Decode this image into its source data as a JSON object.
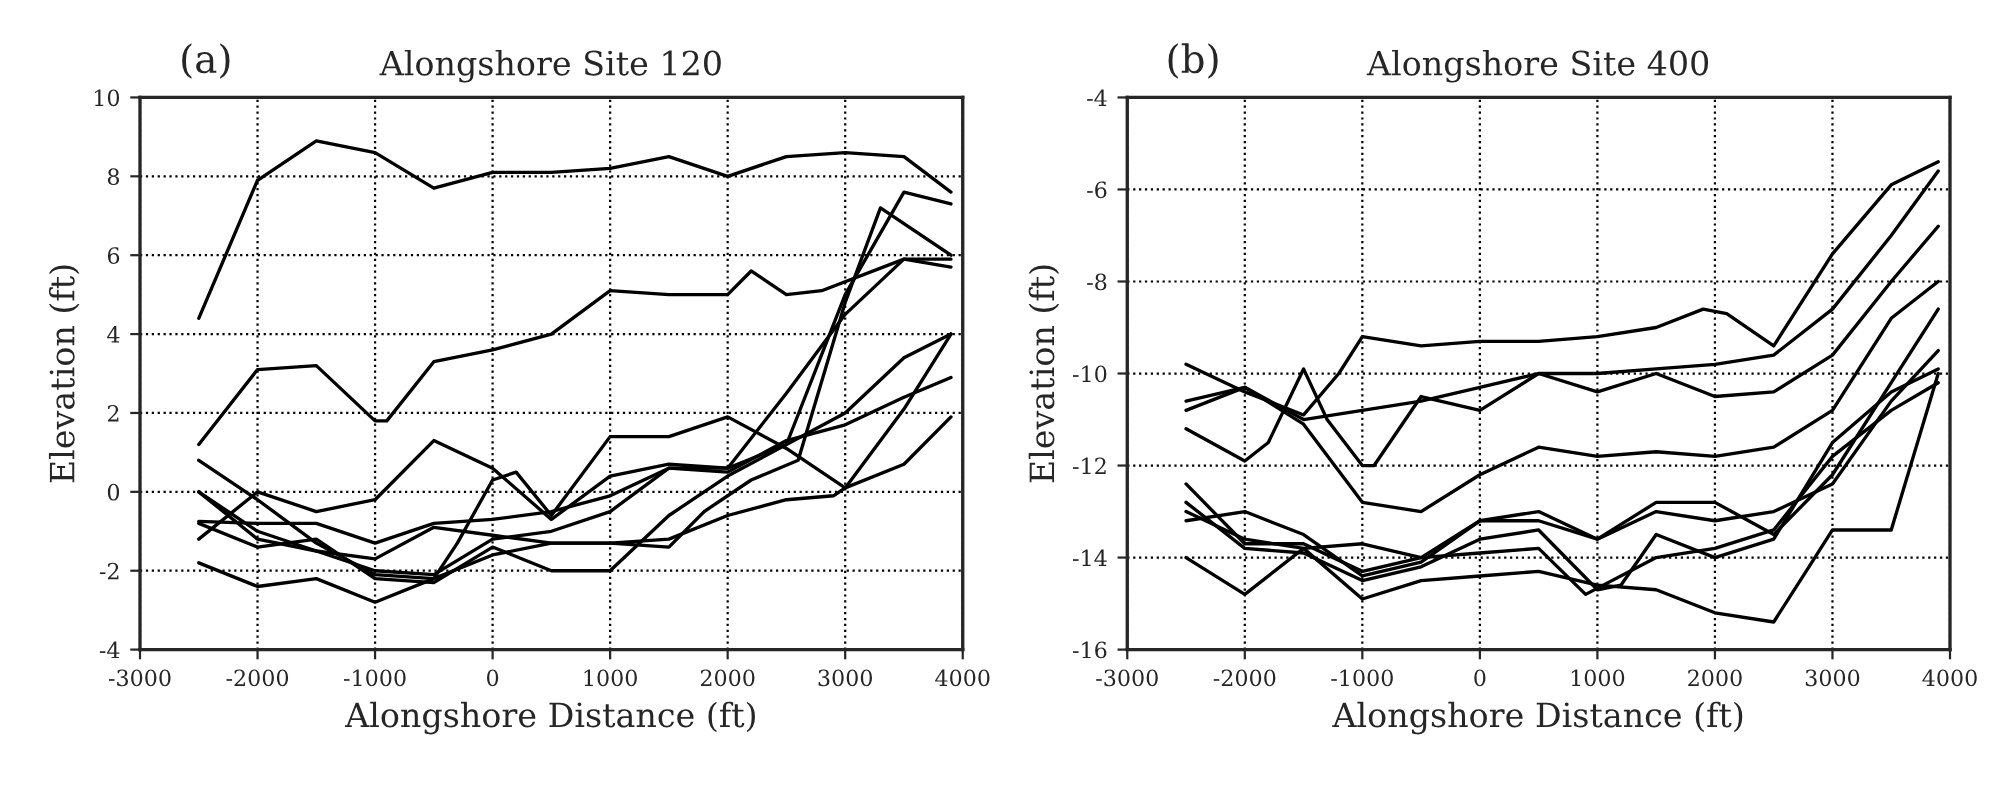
{
  "chart_data": [
    {
      "type": "line",
      "title": "Alongshore Site 120",
      "annotations": [
        "(a)"
      ],
      "xlabel": "Alongshore Distance (ft)",
      "ylabel": "Elevation (ft)",
      "xlim": [
        -3000,
        4000
      ],
      "xticks": [
        -3000,
        -2000,
        -1000,
        0,
        1000,
        2000,
        3000,
        4000
      ],
      "ylim": [
        -4,
        10
      ],
      "yticks": [
        -4,
        -2,
        0,
        2,
        4,
        6,
        8,
        10
      ],
      "grid": true,
      "line_style": "solid",
      "series": [
        {
          "color": "#000000",
          "x": [
            -2500,
            -2000,
            -1500,
            -1000,
            -500,
            0,
            500,
            1000,
            1500,
            2000,
            2500,
            3000,
            3500,
            3900
          ],
          "values": [
            4.4,
            7.9,
            8.9,
            8.6,
            7.7,
            8.1,
            8.1,
            8.2,
            8.5,
            8.0,
            8.5,
            8.6,
            8.5,
            7.6
          ]
        },
        {
          "color": "#000000",
          "x": [
            -2500,
            -2000,
            -1500,
            -1000,
            -900,
            -500,
            0,
            500,
            1000,
            1500,
            2000,
            2200,
            2500,
            2800,
            3500,
            3900
          ],
          "values": [
            1.2,
            3.1,
            3.2,
            1.8,
            1.8,
            3.3,
            3.6,
            4.0,
            5.1,
            5.0,
            5.0,
            5.6,
            5.0,
            5.1,
            5.9,
            5.7
          ]
        },
        {
          "color": "#000000",
          "x": [
            -2500,
            -2000,
            -1500,
            -1000,
            -500,
            -300,
            0,
            200,
            500,
            1000,
            1500,
            2000,
            2500,
            3000,
            3500,
            3900
          ],
          "values": [
            0.8,
            -0.2,
            -1.3,
            -2.1,
            -2.2,
            -1.3,
            0.3,
            0.5,
            -0.6,
            1.4,
            1.4,
            1.9,
            1.1,
            0.1,
            2.1,
            4.0
          ]
        },
        {
          "color": "#000000",
          "x": [
            -2500,
            -2000,
            -1500,
            -1000,
            -500,
            0,
            500,
            1000,
            1500,
            2000,
            2500,
            3000,
            3500,
            3900
          ],
          "values": [
            0.0,
            -1.2,
            -1.5,
            -2.0,
            -2.1,
            -1.2,
            -1.0,
            -0.5,
            0.6,
            0.6,
            2.5,
            4.5,
            5.9,
            5.9
          ]
        },
        {
          "color": "#000000",
          "x": [
            -2500,
            -2000,
            -1500,
            -1000,
            -500,
            0,
            500,
            1000,
            1500,
            2000,
            2500,
            3000,
            3500,
            3900
          ],
          "values": [
            -1.2,
            0.0,
            -0.5,
            -0.2,
            1.3,
            0.6,
            -0.7,
            0.4,
            0.7,
            0.6,
            1.2,
            2.0,
            3.4,
            4.0
          ]
        },
        {
          "color": "#000000",
          "x": [
            -2500,
            -2000,
            -1500,
            -1000,
            -500,
            0,
            500,
            1000,
            1500,
            2000,
            2500,
            3000,
            3500,
            3900
          ],
          "values": [
            -0.75,
            -0.8,
            -0.8,
            -1.3,
            -0.8,
            -0.7,
            -0.5,
            -0.1,
            0.6,
            0.5,
            1.3,
            1.7,
            2.4,
            2.9
          ]
        },
        {
          "color": "#000000",
          "x": [
            -2500,
            -2000,
            -1500,
            -1000,
            -500,
            0,
            500,
            1000,
            1500,
            2000,
            2500,
            2900,
            3000,
            3500,
            3900
          ],
          "values": [
            -1.8,
            -2.4,
            -2.2,
            -2.8,
            -2.2,
            -1.6,
            -1.3,
            -1.3,
            -1.2,
            -0.6,
            -0.2,
            -0.1,
            0.1,
            0.7,
            1.9
          ]
        },
        {
          "color": "#000000",
          "x": [
            -2500,
            -2000,
            -1500,
            -1000,
            -500,
            0,
            500,
            1000,
            1500,
            1800,
            2200,
            2600,
            3000,
            3300,
            3900
          ],
          "values": [
            0.0,
            -1.0,
            -1.5,
            -1.7,
            -0.9,
            -1.1,
            -1.3,
            -1.3,
            -1.4,
            -0.5,
            0.3,
            0.8,
            4.8,
            7.2,
            6.0
          ]
        },
        {
          "color": "#000000",
          "x": [
            -2500,
            -2000,
            -1500,
            -1000,
            -500,
            0,
            500,
            1000,
            1500,
            2000,
            2500,
            3000,
            3500,
            3900
          ],
          "values": [
            -0.8,
            -1.4,
            -1.2,
            -2.2,
            -2.3,
            -1.4,
            -2.0,
            -2.0,
            -0.6,
            0.4,
            1.2,
            5.0,
            7.6,
            7.3
          ]
        }
      ]
    },
    {
      "type": "line",
      "title": "Alongshore Site 400",
      "annotations": [
        "(b)"
      ],
      "xlabel": "Alongshore Distance (ft)",
      "ylabel": "Elevation (ft)",
      "xlim": [
        -3000,
        4000
      ],
      "xticks": [
        -3000,
        -2000,
        -1000,
        0,
        1000,
        2000,
        3000,
        4000
      ],
      "ylim": [
        -16,
        -4
      ],
      "yticks": [
        -16,
        -14,
        -12,
        -10,
        -8,
        -6,
        -4
      ],
      "grid": true,
      "line_style": "solid",
      "series": [
        {
          "color": "#000000",
          "x": [
            -2500,
            -2000,
            -1500,
            -1200,
            -1000,
            -500,
            0,
            500,
            1000,
            1500,
            1900,
            2100,
            2500,
            3000,
            3500,
            3900
          ],
          "values": [
            -9.8,
            -10.4,
            -10.9,
            -10.0,
            -9.2,
            -9.4,
            -9.3,
            -9.3,
            -9.2,
            -9.0,
            -8.6,
            -8.7,
            -9.4,
            -7.4,
            -5.9,
            -5.4
          ]
        },
        {
          "color": "#000000",
          "x": [
            -2500,
            -2000,
            -1500,
            -1000,
            -500,
            0,
            500,
            1000,
            1500,
            2000,
            2500,
            3000,
            3500,
            3900
          ],
          "values": [
            -10.6,
            -10.3,
            -11.0,
            -10.8,
            -10.6,
            -10.3,
            -10.0,
            -10.0,
            -9.9,
            -9.8,
            -9.6,
            -8.6,
            -7.0,
            -5.6
          ]
        },
        {
          "color": "#000000",
          "x": [
            -2500,
            -2000,
            -1800,
            -1500,
            -1300,
            -1000,
            -900,
            -500,
            0,
            500,
            1000,
            1500,
            2000,
            2500,
            3000,
            3500,
            3900
          ],
          "values": [
            -11.2,
            -11.9,
            -11.5,
            -9.9,
            -11.0,
            -12.0,
            -12.0,
            -10.5,
            -10.8,
            -10.0,
            -10.4,
            -10.0,
            -10.5,
            -10.4,
            -9.6,
            -8.0,
            -6.8
          ]
        },
        {
          "color": "#000000",
          "x": [
            -2500,
            -2000,
            -1500,
            -1000,
            -500,
            0,
            500,
            1000,
            1500,
            2000,
            2500,
            3000,
            3500,
            3900
          ],
          "values": [
            -10.8,
            -10.3,
            -11.1,
            -12.8,
            -13.0,
            -12.2,
            -11.6,
            -11.8,
            -11.7,
            -11.8,
            -11.6,
            -10.8,
            -8.8,
            -8.0
          ]
        },
        {
          "color": "#000000",
          "x": [
            -2500,
            -2000,
            -1500,
            -1000,
            -500,
            0,
            500,
            1000,
            1500,
            2000,
            2500,
            3000,
            3500,
            3900
          ],
          "values": [
            -12.4,
            -13.7,
            -13.7,
            -14.3,
            -14.0,
            -13.2,
            -13.0,
            -13.6,
            -12.8,
            -12.8,
            -13.5,
            -12.2,
            -10.2,
            -8.6
          ]
        },
        {
          "color": "#000000",
          "x": [
            -2500,
            -2000,
            -1500,
            -1000,
            -500,
            0,
            500,
            1000,
            1500,
            2000,
            2500,
            3000,
            3500,
            3900
          ],
          "values": [
            -13.2,
            -13.0,
            -13.5,
            -14.4,
            -14.1,
            -13.2,
            -13.2,
            -13.6,
            -13.0,
            -13.2,
            -13.0,
            -12.4,
            -10.6,
            -9.5
          ]
        },
        {
          "color": "#000000",
          "x": [
            -2500,
            -2000,
            -1500,
            -1000,
            -500,
            0,
            500,
            1000,
            1200,
            1500,
            2000,
            2500,
            3000,
            3500,
            3900
          ],
          "values": [
            -12.8,
            -13.8,
            -13.9,
            -14.5,
            -14.2,
            -13.6,
            -13.4,
            -14.7,
            -14.6,
            -13.5,
            -14.0,
            -13.6,
            -11.5,
            -10.4,
            -9.9
          ]
        },
        {
          "color": "#000000",
          "x": [
            -2500,
            -2000,
            -1500,
            -1000,
            -500,
            0,
            500,
            1000,
            1500,
            2000,
            2500,
            2800,
            3000,
            3500,
            3900
          ],
          "values": [
            -14.0,
            -14.8,
            -13.8,
            -14.9,
            -14.5,
            -14.4,
            -14.3,
            -14.6,
            -14.7,
            -15.2,
            -15.4,
            -14.2,
            -13.4,
            -13.4,
            -10.0
          ]
        },
        {
          "color": "#000000",
          "x": [
            -2500,
            -2000,
            -1500,
            -1000,
            -500,
            0,
            500,
            900,
            1500,
            2000,
            2500,
            3000,
            3500,
            3900
          ],
          "values": [
            -13.0,
            -13.6,
            -13.8,
            -13.7,
            -14.0,
            -13.9,
            -13.8,
            -14.8,
            -14.0,
            -13.8,
            -13.4,
            -11.8,
            -10.8,
            -10.2
          ]
        }
      ]
    }
  ]
}
